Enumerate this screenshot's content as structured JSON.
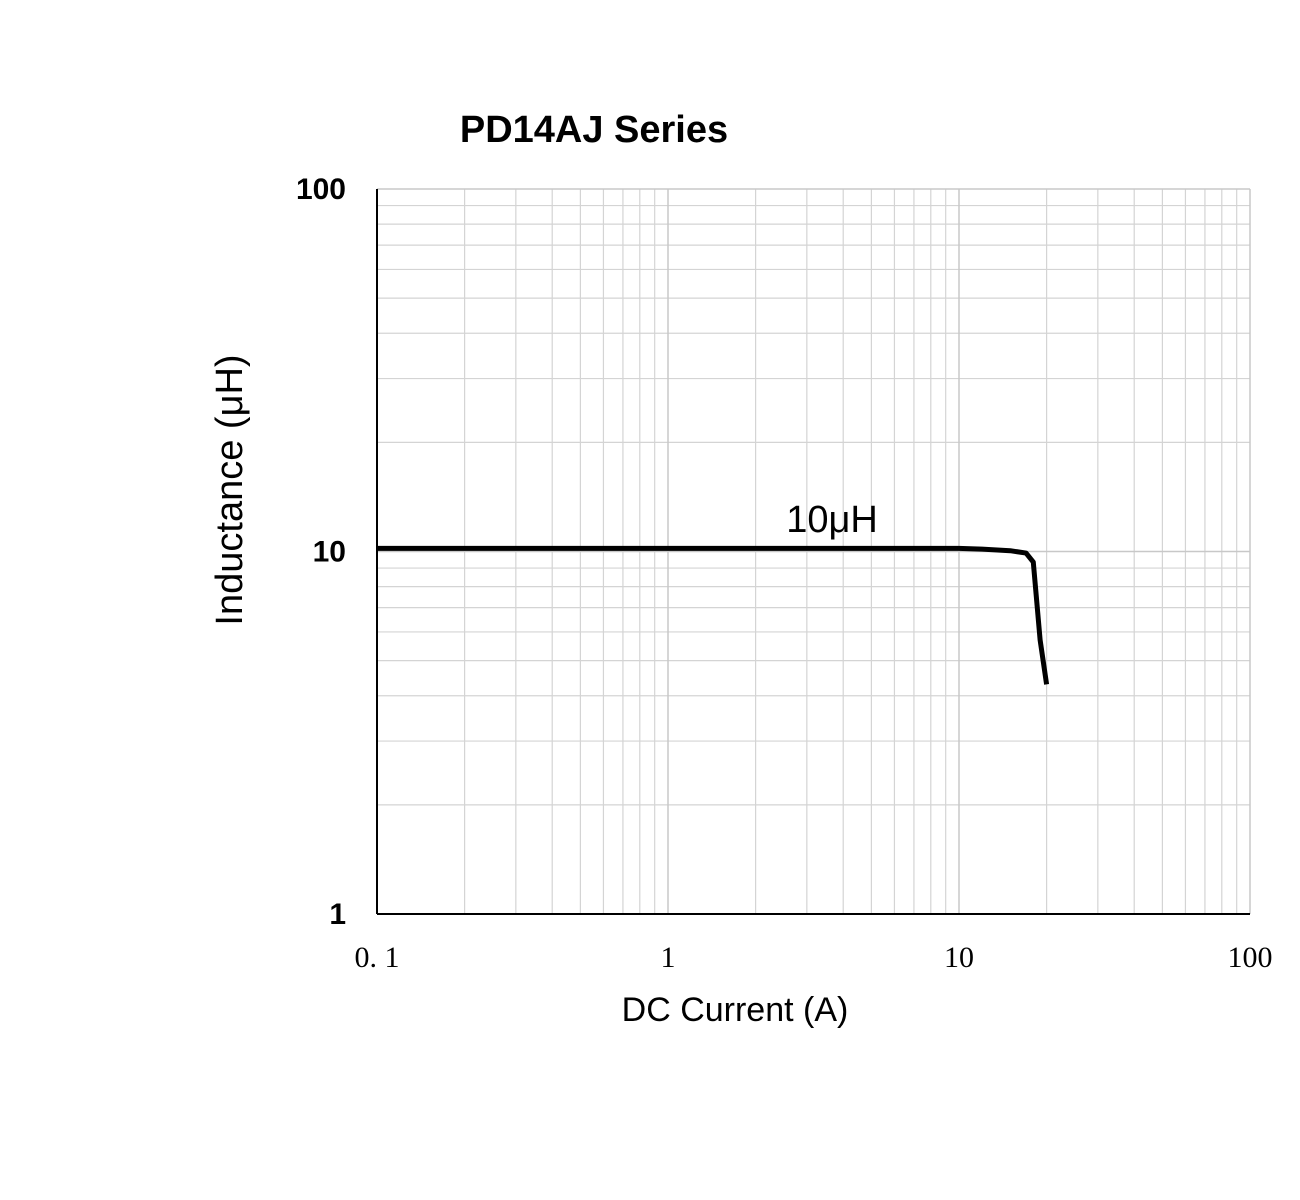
{
  "chart_data": {
    "type": "line",
    "title": "PD14AJ  Series",
    "x_label": "DC Current (A)",
    "y_label": "Inductance (μH)",
    "x_log": true,
    "y_log": true,
    "grid": true,
    "minor_grid": true,
    "xlim": [
      0.1,
      100
    ],
    "ylim": [
      1,
      100
    ],
    "xticks": [
      {
        "value": 0.1,
        "label": "0. 1"
      },
      1,
      10,
      100
    ],
    "yticks": [
      1,
      10,
      100
    ],
    "x": [
      0.1,
      1,
      5,
      10,
      12,
      15,
      17,
      18,
      19,
      20
    ],
    "series": [
      {
        "name": "10μH",
        "color": "#000000",
        "values": [
          10.2,
          10.2,
          10.2,
          10.2,
          10.15,
          10.05,
          9.9,
          9.35,
          5.7,
          4.3
        ]
      }
    ]
  }
}
